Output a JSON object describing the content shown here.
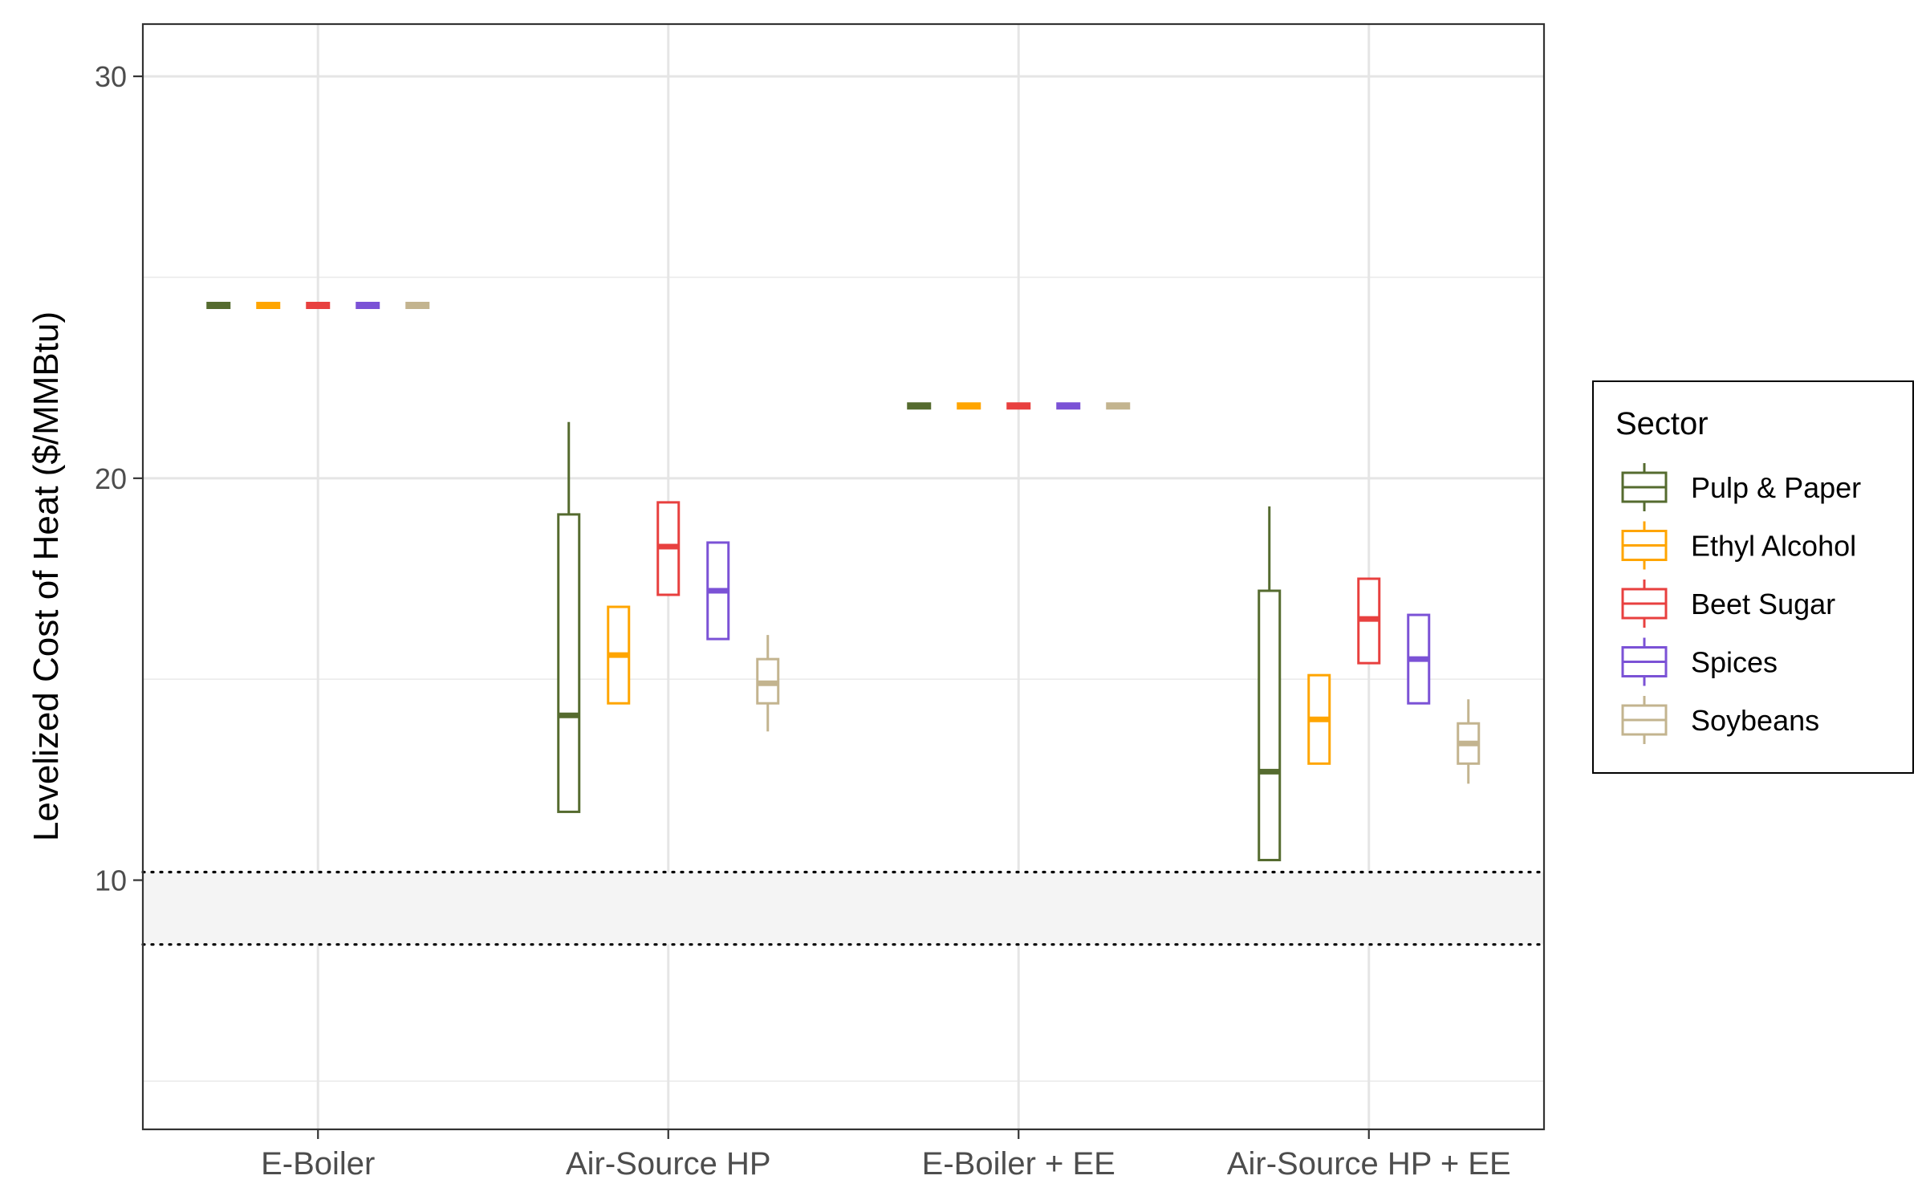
{
  "chart_data": {
    "type": "box",
    "title": "",
    "xlabel": "",
    "ylabel": "Levelized Cost of Heat ($/MMBtu)",
    "ylim": [
      3.8,
      31.3
    ],
    "yticks": [
      10,
      20,
      30
    ],
    "grid": true,
    "categories": [
      "E-Boiler",
      "Air-Source HP",
      "E-Boiler + EE",
      "Air-Source HP + EE"
    ],
    "reference_band": {
      "low": 8.4,
      "high": 10.2,
      "line_style": "dotted"
    },
    "legend": {
      "title": "Sector",
      "position": "right",
      "entries": [
        "Pulp & Paper",
        "Ethyl Alcohol",
        "Beet Sugar",
        "Spices",
        "Soybeans"
      ]
    },
    "series": [
      {
        "name": "Pulp & Paper",
        "color": "#556b2f",
        "boxes": [
          {
            "min": 24.3,
            "q1": 24.3,
            "median": 24.3,
            "q3": 24.3,
            "max": 24.3
          },
          {
            "min": 11.7,
            "q1": 11.7,
            "median": 14.1,
            "q3": 19.1,
            "max": 21.4
          },
          {
            "min": 21.8,
            "q1": 21.8,
            "median": 21.8,
            "q3": 21.8,
            "max": 21.8
          },
          {
            "min": 10.5,
            "q1": 10.5,
            "median": 12.7,
            "q3": 17.2,
            "max": 19.3
          }
        ]
      },
      {
        "name": "Ethyl Alcohol",
        "color": "#ffa500",
        "boxes": [
          {
            "min": 24.3,
            "q1": 24.3,
            "median": 24.3,
            "q3": 24.3,
            "max": 24.3
          },
          {
            "min": 14.4,
            "q1": 14.4,
            "median": 15.6,
            "q3": 16.8,
            "max": 16.8
          },
          {
            "min": 21.8,
            "q1": 21.8,
            "median": 21.8,
            "q3": 21.8,
            "max": 21.8
          },
          {
            "min": 12.9,
            "q1": 12.9,
            "median": 14.0,
            "q3": 15.1,
            "max": 15.1
          }
        ]
      },
      {
        "name": "Beet Sugar",
        "color": "#e8403f",
        "boxes": [
          {
            "min": 24.3,
            "q1": 24.3,
            "median": 24.3,
            "q3": 24.3,
            "max": 24.3
          },
          {
            "min": 17.1,
            "q1": 17.1,
            "median": 18.3,
            "q3": 19.4,
            "max": 19.4
          },
          {
            "min": 21.8,
            "q1": 21.8,
            "median": 21.8,
            "q3": 21.8,
            "max": 21.8
          },
          {
            "min": 15.4,
            "q1": 15.4,
            "median": 16.5,
            "q3": 17.5,
            "max": 17.5
          }
        ]
      },
      {
        "name": "Spices",
        "color": "#7b52d6",
        "boxes": [
          {
            "min": 24.3,
            "q1": 24.3,
            "median": 24.3,
            "q3": 24.3,
            "max": 24.3
          },
          {
            "min": 16.0,
            "q1": 16.0,
            "median": 17.2,
            "q3": 18.4,
            "max": 18.4
          },
          {
            "min": 21.8,
            "q1": 21.8,
            "median": 21.8,
            "q3": 21.8,
            "max": 21.8
          },
          {
            "min": 14.4,
            "q1": 14.4,
            "median": 15.5,
            "q3": 16.6,
            "max": 16.6
          }
        ]
      },
      {
        "name": "Soybeans",
        "color": "#c3b48f",
        "boxes": [
          {
            "min": 24.3,
            "q1": 24.3,
            "median": 24.3,
            "q3": 24.3,
            "max": 24.3
          },
          {
            "min": 13.7,
            "q1": 14.4,
            "median": 14.9,
            "q3": 15.5,
            "max": 16.1
          },
          {
            "min": 21.8,
            "q1": 21.8,
            "median": 21.8,
            "q3": 21.8,
            "max": 21.8
          },
          {
            "min": 12.4,
            "q1": 12.9,
            "median": 13.4,
            "q3": 13.9,
            "max": 14.5
          }
        ]
      }
    ]
  }
}
